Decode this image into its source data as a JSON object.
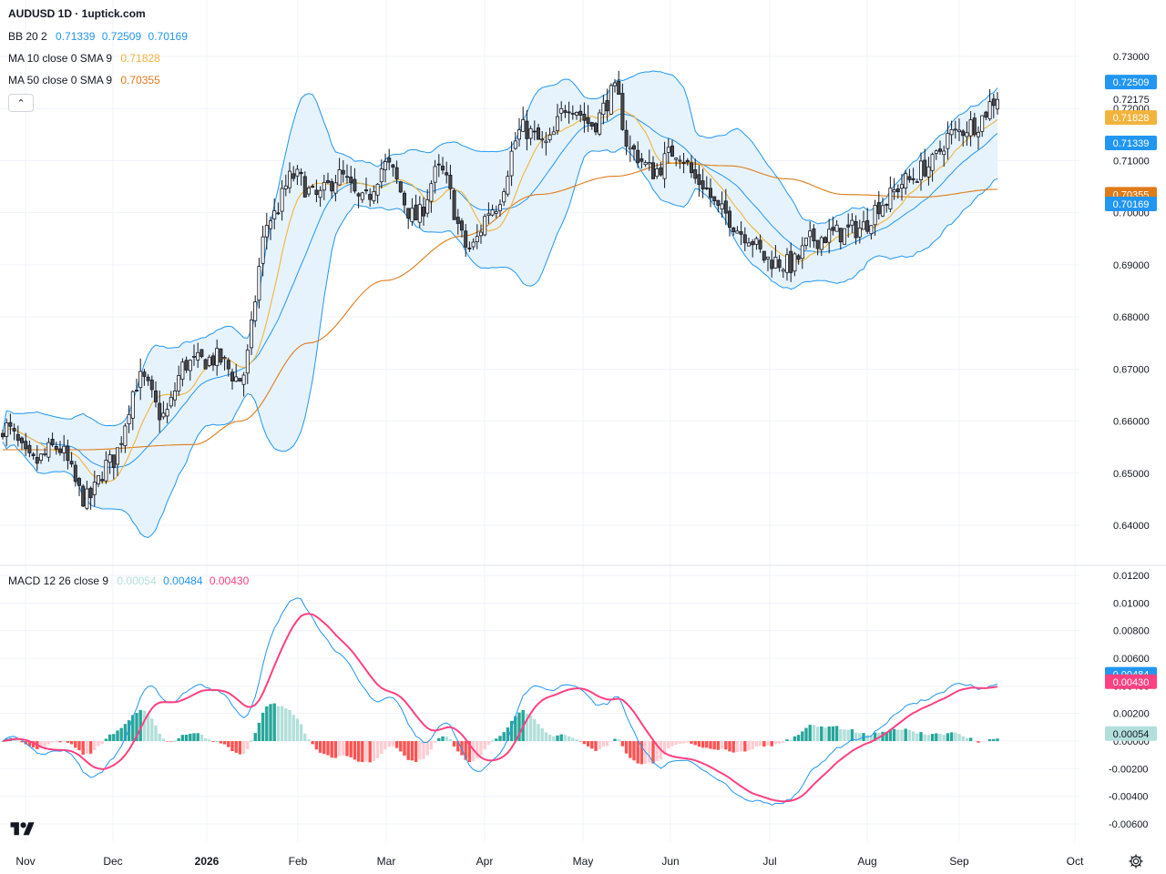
{
  "header": {
    "title": "AUDUSD 1D · 1uptick.com"
  },
  "legend": {
    "bb": {
      "label": "BB 20 2",
      "basis": "0.71339",
      "upper": "0.72509",
      "lower": "0.70169"
    },
    "ma10": {
      "label": "MA 10 close 0 SMA 9",
      "value": "0.71828"
    },
    "ma50": {
      "label": "MA 50 close 0 SMA 9",
      "value": "0.70355"
    },
    "macd": {
      "label": "MACD 12 26 close 9",
      "hist": "0.00054",
      "macd": "0.00484",
      "signal": "0.00430"
    }
  },
  "colors": {
    "bb_line": "#2196f3",
    "bb_fill": "#e3f2fd",
    "ma10": "#f2b33d",
    "ma50": "#e07b1a",
    "macd": "#2196f3",
    "signal": "#ff4081",
    "hist_pos_strong": "#26a69a",
    "hist_pos_weak": "#b2dfdb",
    "hist_neg_strong": "#ff5252",
    "hist_neg_weak": "#ffcdd2",
    "grid": "#f0f3fa"
  },
  "chart_data": [
    {
      "type": "candlestick",
      "title": "AUDUSD 1D",
      "ylim": [
        0.635,
        0.7335
      ],
      "y_ticks": [
        "0.64000",
        "0.65000",
        "0.66000",
        "0.67000",
        "0.68000",
        "0.69000",
        "0.70000",
        "0.71000",
        "0.72000",
        "0.73000"
      ],
      "x_labels": [
        "Nov",
        "Dec",
        "2026",
        "Feb",
        "Mar",
        "Apr",
        "May",
        "Jun",
        "Jul",
        "Aug",
        "Sep",
        "Oct"
      ],
      "last_price": "0.72175",
      "price_tags": [
        {
          "value": "0.72509",
          "color": "#2196f3"
        },
        {
          "value": "0.71828",
          "color": "#f2b33d"
        },
        {
          "value": "0.71339",
          "color": "#2196f3"
        },
        {
          "value": "0.70355",
          "color": "#e07b1a"
        },
        {
          "value": "0.70169",
          "color": "#2196f3"
        }
      ],
      "close_waypoints": [
        [
          0,
          0.659
        ],
        [
          8,
          0.652
        ],
        [
          14,
          0.655
        ],
        [
          22,
          0.645
        ],
        [
          28,
          0.652
        ],
        [
          36,
          0.668
        ],
        [
          42,
          0.661
        ],
        [
          48,
          0.671
        ],
        [
          56,
          0.672
        ],
        [
          62,
          0.668
        ],
        [
          70,
          0.699
        ],
        [
          76,
          0.707
        ],
        [
          82,
          0.703
        ],
        [
          88,
          0.707
        ],
        [
          94,
          0.702
        ],
        [
          100,
          0.709
        ],
        [
          108,
          0.699
        ],
        [
          114,
          0.708
        ],
        [
          122,
          0.693
        ],
        [
          128,
          0.701
        ],
        [
          136,
          0.716
        ],
        [
          142,
          0.713
        ],
        [
          148,
          0.721
        ],
        [
          154,
          0.717
        ],
        [
          160,
          0.723
        ],
        [
          164,
          0.712
        ],
        [
          170,
          0.708
        ],
        [
          176,
          0.712
        ],
        [
          182,
          0.706
        ],
        [
          188,
          0.7
        ],
        [
          194,
          0.696
        ],
        [
          200,
          0.691
        ],
        [
          206,
          0.69
        ],
        [
          212,
          0.695
        ],
        [
          218,
          0.696
        ],
        [
          224,
          0.697
        ],
        [
          230,
          0.702
        ],
        [
          236,
          0.706
        ],
        [
          242,
          0.709
        ],
        [
          248,
          0.715
        ],
        [
          254,
          0.717
        ],
        [
          260,
          0.722
        ]
      ],
      "ma50_waypoints": [
        [
          0,
          0.6545
        ],
        [
          20,
          0.6545
        ],
        [
          50,
          0.6555
        ],
        [
          62,
          0.66
        ],
        [
          80,
          0.675
        ],
        [
          100,
          0.687
        ],
        [
          120,
          0.6955
        ],
        [
          140,
          0.7035
        ],
        [
          160,
          0.707
        ],
        [
          175,
          0.7095
        ],
        [
          190,
          0.709
        ],
        [
          205,
          0.7065
        ],
        [
          220,
          0.7035
        ],
        [
          240,
          0.703
        ],
        [
          260,
          0.7045
        ]
      ]
    },
    {
      "type": "macd",
      "ylim": [
        -0.0068,
        0.0125
      ],
      "y_ticks": [
        "0.01200",
        "0.01000",
        "0.00800",
        "0.00600",
        "0.00400",
        "0.00200",
        "0.00000",
        "-0.00200",
        "-0.00400",
        "-0.00600"
      ],
      "last": {
        "macd": "0.00484",
        "signal": "0.00430",
        "hist": "0.00054"
      }
    }
  ]
}
